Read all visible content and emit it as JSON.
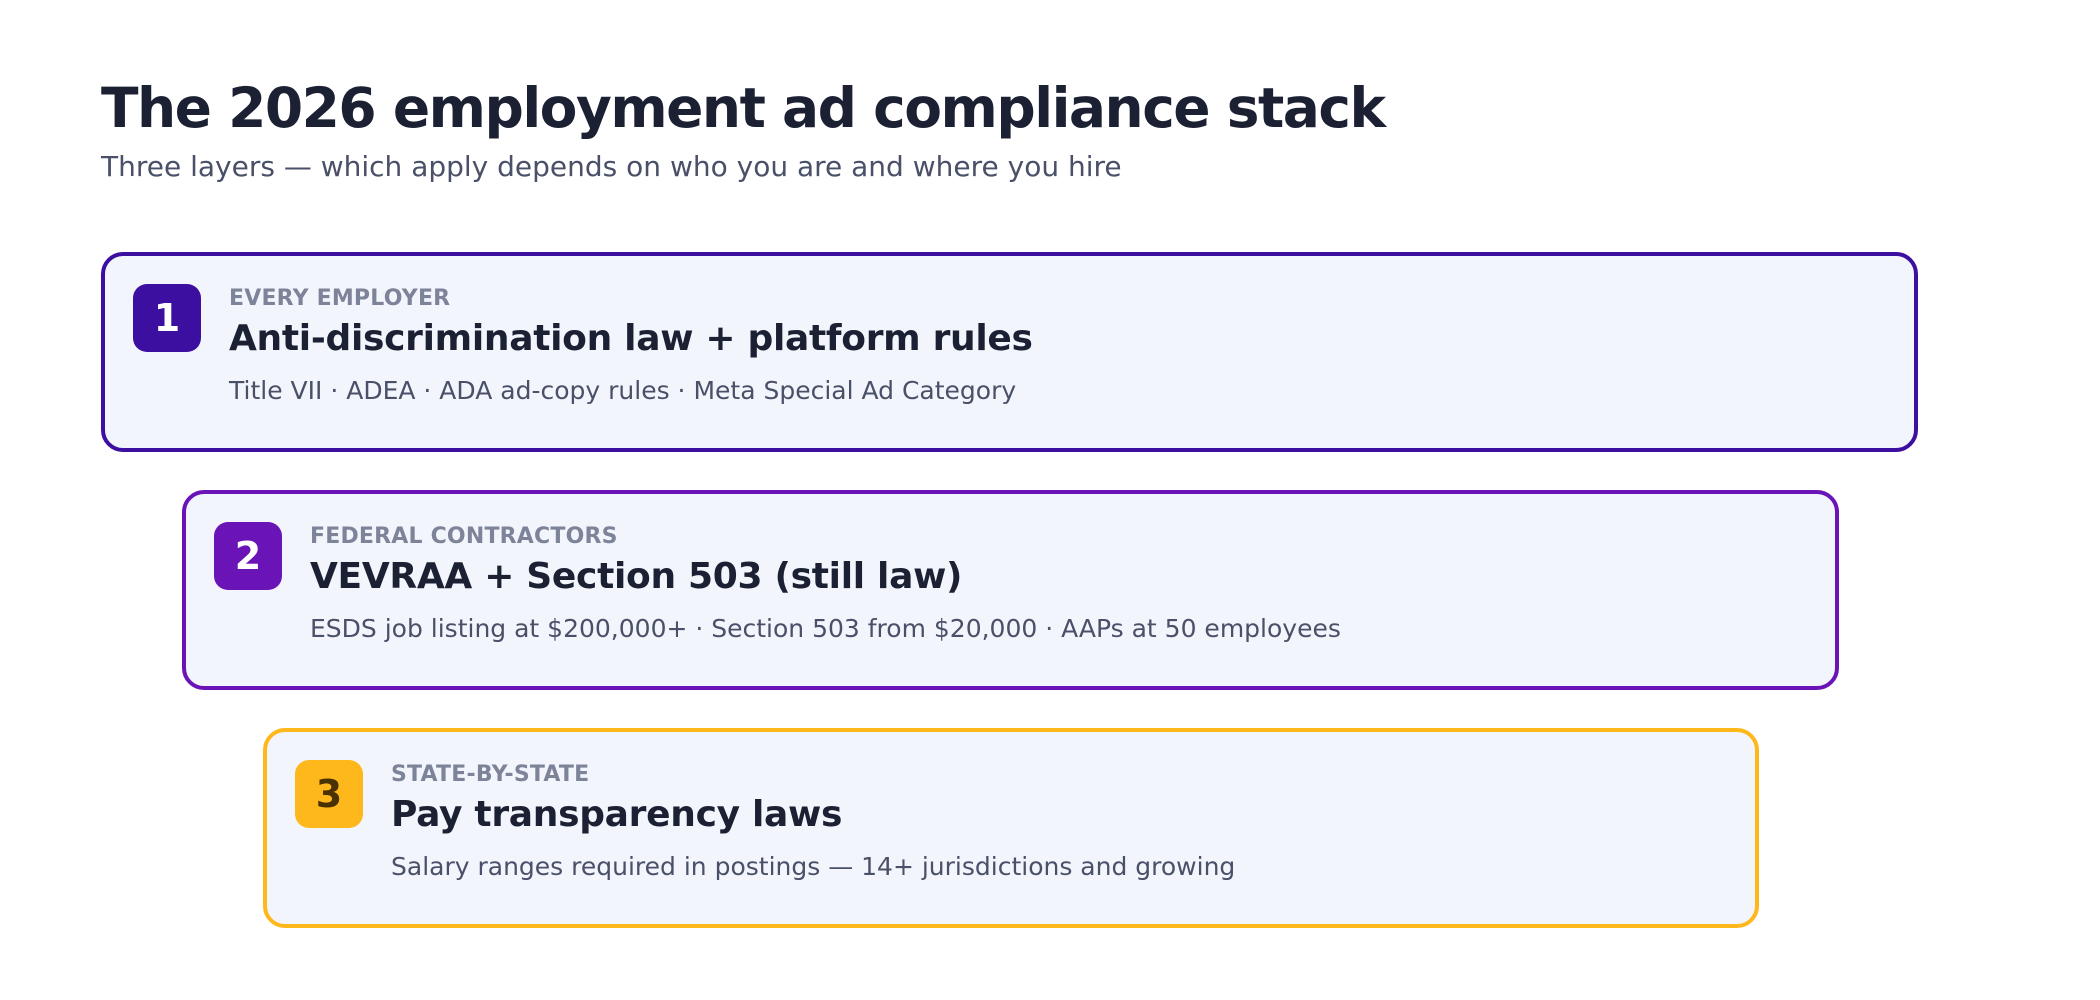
{
  "title": "The 2026 employment ad compliance stack",
  "subtitle": "Three layers — which apply depends on who you are and where you hire",
  "layers": [
    {
      "number": "1",
      "tag": "EVERY EMPLOYER",
      "heading": "Anti-discrimination law + platform rules",
      "description": "Title VII · ADEA · ADA ad-copy rules · Meta Special Ad Category",
      "border_color": "#3d0fa0",
      "badge_color": "#3d0fa0",
      "badge_text_color": "#ffffff"
    },
    {
      "number": "2",
      "tag": "FEDERAL CONTRACTORS",
      "heading": "VEVRAA + Section 503 (still law)",
      "description": "ESDS job listing at $200,000+ · Section 503 from $20,000 · AAPs at 50 employees",
      "border_color": "#6a14b8",
      "badge_color": "#6a14b8",
      "badge_text_color": "#ffffff"
    },
    {
      "number": "3",
      "tag": "STATE-BY-STATE",
      "heading": "Pay transparency laws",
      "description": "Salary ranges required in postings — 14+ jurisdictions and growing",
      "border_color": "#ffb81c",
      "badge_color": "#ffb81c",
      "badge_text_color": "#4a3100"
    }
  ]
}
